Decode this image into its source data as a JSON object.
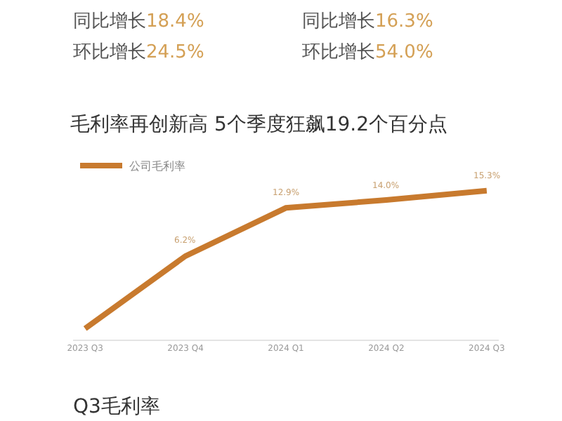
{
  "chart_data": {
    "type": "line",
    "title": "毛利率再创新高 5个季度狂飙19.2个百分点",
    "categories": [
      "2023 Q3",
      "2023 Q4",
      "2024 Q1",
      "2024 Q2",
      "2024 Q3"
    ],
    "series": [
      {
        "name": "公司毛利率",
        "color": "#c87a2e",
        "values": [
          -3.9,
          6.2,
          12.9,
          14.0,
          15.3
        ],
        "value_labels": [
          null,
          "6.2%",
          "12.9%",
          "14.0%",
          "15.3%"
        ]
      }
    ],
    "legend": "top left",
    "marker": "none",
    "line_style": "solid",
    "annotations": [
      "同比增长18.4%",
      "环比增长24.5%",
      "同比增长16.3%",
      "环比增长54.0%",
      "Q3毛利率"
    ]
  }
}
